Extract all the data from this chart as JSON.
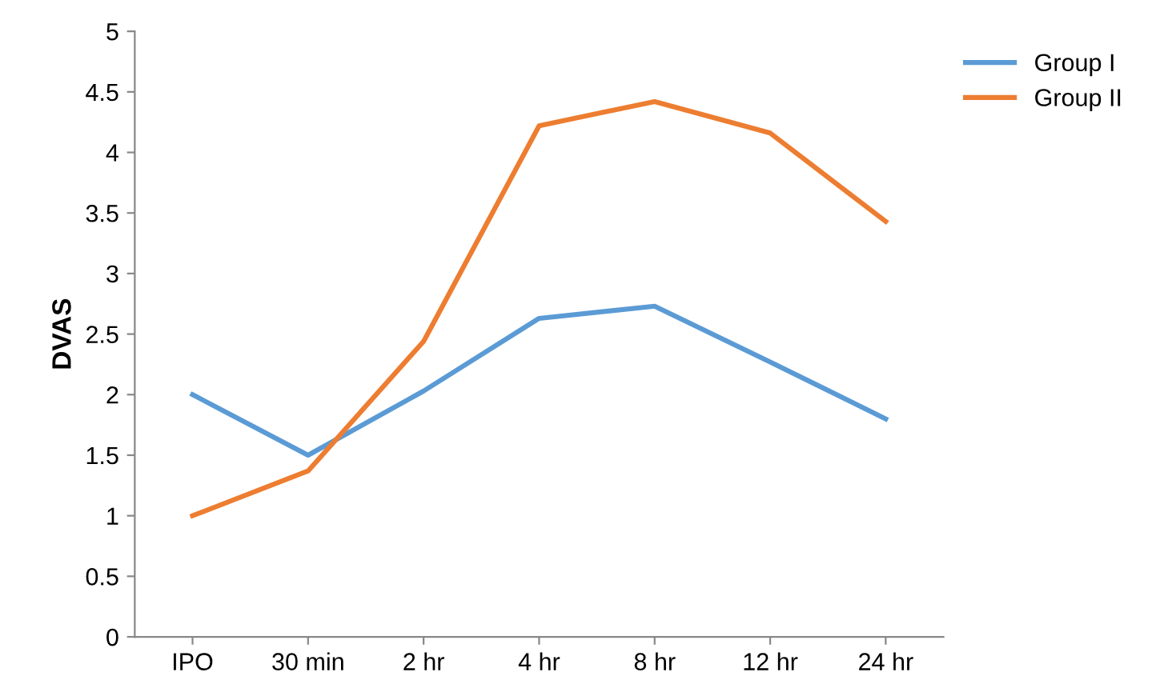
{
  "chart_data": {
    "type": "line",
    "ylabel": "DVAS",
    "categories": [
      "IPO",
      "30 min",
      "2 hr",
      "4 hr",
      "8 hr",
      "12 hr",
      "24 hr"
    ],
    "series": [
      {
        "name": "Group I",
        "color": "#5b9bd5",
        "values": [
          2.0,
          1.5,
          2.03,
          2.63,
          2.73,
          2.27,
          1.8
        ]
      },
      {
        "name": "Group II",
        "color": "#ed7d31",
        "values": [
          1.0,
          1.37,
          2.44,
          4.22,
          4.42,
          4.16,
          3.43
        ]
      }
    ],
    "ylim": [
      0,
      5
    ],
    "yticks": [
      0,
      0.5,
      1,
      1.5,
      2,
      2.5,
      3,
      3.5,
      4,
      4.5,
      5
    ],
    "grid": false,
    "legend": "top right",
    "marker": "none",
    "line_style": "solid"
  }
}
